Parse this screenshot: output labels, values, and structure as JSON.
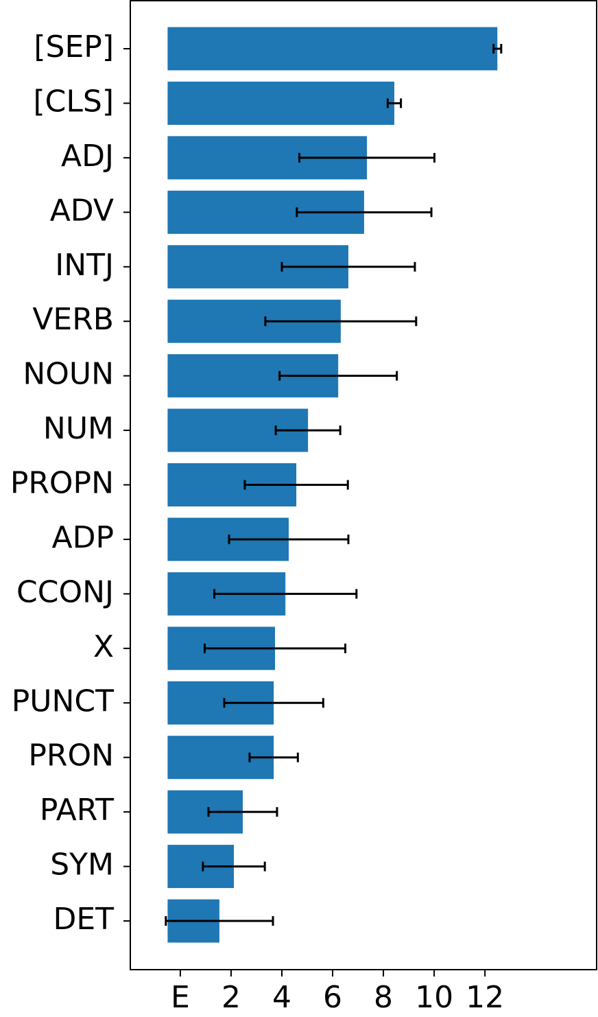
{
  "chart_data": {
    "type": "barh",
    "categories": [
      "[SEP]",
      "[CLS]",
      "ADJ",
      "ADV",
      "INTJ",
      "VERB",
      "NOUN",
      "NUM",
      "PROPN",
      "ADP",
      "CCONJ",
      "X",
      "PUNCT",
      "PRON",
      "PART",
      "SYM",
      "DET"
    ],
    "values": [
      12.49,
      8.43,
      7.35,
      7.24,
      6.62,
      6.32,
      6.22,
      5.03,
      4.57,
      4.27,
      4.14,
      3.73,
      3.68,
      3.68,
      2.46,
      2.11,
      1.54
    ],
    "errors": [
      0.15,
      0.26,
      2.66,
      2.65,
      2.62,
      2.97,
      2.31,
      1.27,
      2.03,
      2.35,
      2.8,
      2.77,
      1.95,
      0.95,
      1.35,
      1.22,
      2.11
    ],
    "base": -0.5,
    "color": "#1f77b4",
    "xlim": [
      -1.97,
      16.4
    ],
    "xticks": [
      {
        "value": 0,
        "label": "E"
      },
      2,
      4,
      6,
      8,
      10,
      12
    ]
  }
}
